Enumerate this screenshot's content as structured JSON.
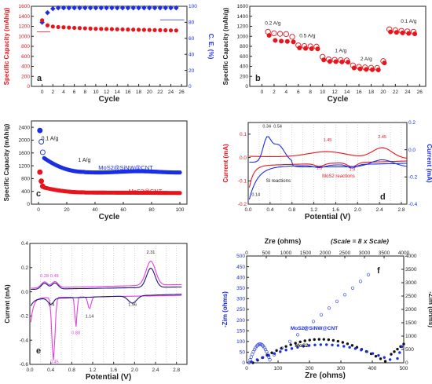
{
  "colors": {
    "red": "#e8141c",
    "blue": "#1a2ee6",
    "pink": "#e83ee0",
    "navy": "#1a1a7a",
    "black": "#111111",
    "axis": "#222222"
  },
  "chart_data": [
    {
      "type": "scatter",
      "panel_label": "a",
      "xlabel": "Cycle",
      "ylabel": "Specific Capacity (mAh/g)",
      "y2label": "C. E. (%)",
      "xlim": [
        -2,
        27
      ],
      "ylim": [
        0,
        1600
      ],
      "y2lim": [
        0,
        100
      ],
      "xticks": [
        "0",
        "2",
        "4",
        "6",
        "8",
        "10",
        "12",
        "14",
        "16",
        "18",
        "20",
        "22",
        "24",
        "26"
      ],
      "yticks": [
        "0",
        "200",
        "400",
        "600",
        "800",
        "1000",
        "1200",
        "1400",
        "1600"
      ],
      "y2ticks": [
        "0",
        "20",
        "40",
        "60",
        "80",
        "100"
      ],
      "series": [
        {
          "axis": "left",
          "color": "red",
          "marker": "circle",
          "x": [
            0,
            1,
            2,
            3,
            4,
            5,
            6,
            7,
            8,
            9,
            10,
            11,
            12,
            13,
            14,
            15,
            16,
            17,
            18,
            19,
            20,
            21,
            22,
            23,
            24,
            25
          ],
          "y": [
            1320,
            1220,
            1195,
            1185,
            1180,
            1175,
            1170,
            1165,
            1160,
            1155,
            1150,
            1148,
            1146,
            1143,
            1141,
            1138,
            1135,
            1133,
            1131,
            1129,
            1127,
            1125,
            1123,
            1121,
            1119,
            1117
          ]
        },
        {
          "axis": "right",
          "color": "blue",
          "marker": "diamond",
          "x": [
            0,
            1,
            2,
            3,
            4,
            5,
            6,
            7,
            8,
            9,
            10,
            11,
            12,
            13,
            14,
            15,
            16,
            17,
            18,
            19,
            20,
            21,
            22,
            23,
            24,
            25
          ],
          "y": [
            80,
            92,
            97,
            98,
            98,
            98,
            98,
            98,
            98,
            98,
            98,
            98,
            98,
            98,
            98,
            98,
            98,
            98,
            98,
            98,
            98,
            98,
            98,
            98,
            98,
            98
          ]
        }
      ]
    },
    {
      "type": "scatter",
      "panel_label": "b",
      "xlabel": "Cycle",
      "ylabel": "Specific Capacity (mAh/g)",
      "xlim": [
        -2,
        27
      ],
      "ylim": [
        0,
        1600
      ],
      "xticks": [
        "0",
        "2",
        "4",
        "6",
        "8",
        "10",
        "12",
        "14",
        "16",
        "18",
        "20",
        "22",
        "24",
        "26"
      ],
      "yticks": [
        "0",
        "200",
        "400",
        "600",
        "800",
        "1000",
        "1200",
        "1400",
        "1600"
      ],
      "annotations": [
        {
          "text": "0.2 A/g",
          "x": 1.8,
          "y": 1230
        },
        {
          "text": "0.5 A/g",
          "x": 7.5,
          "y": 980
        },
        {
          "text": "1 A/g",
          "x": 13,
          "y": 680
        },
        {
          "text": "2 A/g",
          "x": 17.2,
          "y": 520
        },
        {
          "text": "0.1 A/g",
          "x": 24.2,
          "y": 1270
        }
      ],
      "series": [
        {
          "color": "red",
          "marker": "circle",
          "fill": "solid",
          "x": [
            1,
            2,
            3,
            4,
            5,
            6,
            7,
            8,
            9,
            10,
            11,
            12,
            13,
            14,
            15,
            16,
            17,
            18,
            19,
            20,
            21,
            22,
            23,
            24,
            25
          ],
          "y": [
            1050,
            950,
            935,
            930,
            920,
            800,
            790,
            785,
            780,
            560,
            530,
            525,
            520,
            515,
            400,
            380,
            370,
            365,
            360,
            500,
            1120,
            1110,
            1100,
            1090,
            1080
          ]
        },
        {
          "color": "red",
          "marker": "circle",
          "fill": "open",
          "x": [
            1,
            2,
            3,
            4,
            5,
            6,
            7,
            8,
            9,
            10,
            11,
            12,
            13,
            14,
            15,
            16,
            17,
            18,
            19,
            20,
            21,
            22,
            23,
            24,
            25
          ],
          "y": [
            1090,
            1060,
            1050,
            1045,
            990,
            820,
            805,
            800,
            795,
            590,
            540,
            530,
            525,
            520,
            420,
            390,
            380,
            372,
            368,
            505,
            1140,
            1120,
            1110,
            1100,
            1090
          ]
        }
      ]
    },
    {
      "type": "scatter",
      "panel_label": "c",
      "xlabel": "Cycle",
      "ylabel": "Specific Capacity (mAh/g)",
      "xlim": [
        -5,
        105
      ],
      "ylim": [
        0,
        2600
      ],
      "xticks": [
        "0",
        "20",
        "40",
        "60",
        "80",
        "100"
      ],
      "yticks": [
        "0",
        "400",
        "800",
        "1200",
        "1600",
        "2000",
        "2400"
      ],
      "annotations": [
        {
          "text": "0.1 A/g",
          "x": 2,
          "y": 2000
        },
        {
          "text": "1 A/g",
          "x": 28,
          "y": 1320
        }
      ],
      "series": [
        {
          "name": "MoS2@SiNW@CNT",
          "color": "blue",
          "first": [
            [
              1,
              2300
            ],
            [
              2,
              1950
            ],
            [
              3,
              1620
            ]
          ],
          "y_start": 1440,
          "y_mid": 1010,
          "y_end": 1010
        },
        {
          "name": "MoS2@CNT",
          "color": "red",
          "first": [
            [
              1,
              1000
            ],
            [
              2,
              720
            ],
            [
              3,
              560
            ]
          ],
          "y_start": 520,
          "y_mid": 370,
          "y_end": 350
        }
      ]
    },
    {
      "type": "line",
      "panel_label": "d",
      "xlabel": "Potential (V)",
      "ylabel": "Current (mA)",
      "y2label": "Current (mA)",
      "xlim": [
        0,
        2.9
      ],
      "ylim": [
        -0.2,
        0.15
      ],
      "y2lim": [
        -0.4,
        0.2
      ],
      "xticks": [
        "0.0",
        "0.4",
        "0.8",
        "1.2",
        "1.6",
        "2.0",
        "2.4",
        "2.8"
      ],
      "yticks": [
        "-0.2",
        "-0.1",
        "0.0",
        "0.1"
      ],
      "y2ticks": [
        "-0.4",
        "-0.2",
        "0.0",
        "0.2"
      ],
      "annotations": [
        {
          "text": "0.34",
          "x": 0.34,
          "y": 0.128
        },
        {
          "text": "0.54",
          "x": 0.54,
          "y": 0.128
        },
        {
          "text": "1.45",
          "x": 1.45,
          "y": 0.07
        },
        {
          "text": "2.45",
          "x": 2.45,
          "y": 0.083
        },
        {
          "text": "1.3",
          "x": 1.3,
          "y": -0.05
        },
        {
          "text": "1.9",
          "x": 1.9,
          "y": -0.057
        },
        {
          "text": "0.14",
          "x": 0.14,
          "y": -0.165
        },
        {
          "text": "Si reactions",
          "x": 0.55,
          "y": -0.105
        },
        {
          "text": "MoS2 reactions",
          "x": 1.65,
          "y": -0.085
        }
      ]
    },
    {
      "type": "line",
      "panel_label": "e",
      "xlabel": "Potential (V)",
      "ylabel": "Current (mA)",
      "xlim": [
        0,
        3.0
      ],
      "ylim": [
        -0.6,
        0.4
      ],
      "xticks": [
        "0.0",
        "0.4",
        "0.8",
        "1.2",
        "1.6",
        "2.0",
        "2.4",
        "2.8"
      ],
      "yticks": [
        "-0.6",
        "-0.4",
        "-0.2",
        "0.0",
        "0.2",
        "0.4"
      ],
      "annotations": [
        {
          "text": "2.31",
          "x": 2.31,
          "y": 0.315
        },
        {
          "text": "0.28",
          "x": 0.28,
          "y": 0.12
        },
        {
          "text": "0.48",
          "x": 0.47,
          "y": 0.12
        },
        {
          "text": "0.4",
          "x": 0.41,
          "y": -0.115
        },
        {
          "text": "0.45",
          "x": 0.47,
          "y": -0.59
        },
        {
          "text": "0.88",
          "x": 0.88,
          "y": -0.35
        },
        {
          "text": "1.14",
          "x": 1.14,
          "y": -0.215
        },
        {
          "text": "1.96",
          "x": 1.96,
          "y": -0.115
        }
      ]
    },
    {
      "type": "scatter",
      "panel_label": "f",
      "xlabel": "Zre (ohms)",
      "ylabel": "-Zim (ohms)",
      "x2label": "Zre (ohms)",
      "scale_note": "(Scale = 8 x Scale)",
      "y2label": "-Zim (ohms)",
      "xlim": [
        0,
        500
      ],
      "ylim": [
        0,
        500
      ],
      "x2lim": [
        0,
        4000
      ],
      "y2lim": [
        0,
        4000
      ],
      "xticks": [
        "0",
        "100",
        "200",
        "300",
        "400",
        "500"
      ],
      "yticks": [
        "0",
        "50",
        "100",
        "150",
        "200",
        "250",
        "300",
        "350",
        "400",
        "450",
        "500"
      ],
      "x2ticks": [
        "0",
        "500",
        "1000",
        "1500",
        "2000",
        "2500",
        "3000",
        "3500",
        "4000"
      ],
      "y2ticks": [
        "0",
        "500",
        "1000",
        "1500",
        "2000",
        "2500",
        "3000",
        "3500",
        "4000"
      ],
      "series": [
        {
          "name": "MoS2@SiNW@CNT",
          "color": "blue"
        },
        {
          "name": "MoS2",
          "color": "black"
        }
      ]
    }
  ]
}
